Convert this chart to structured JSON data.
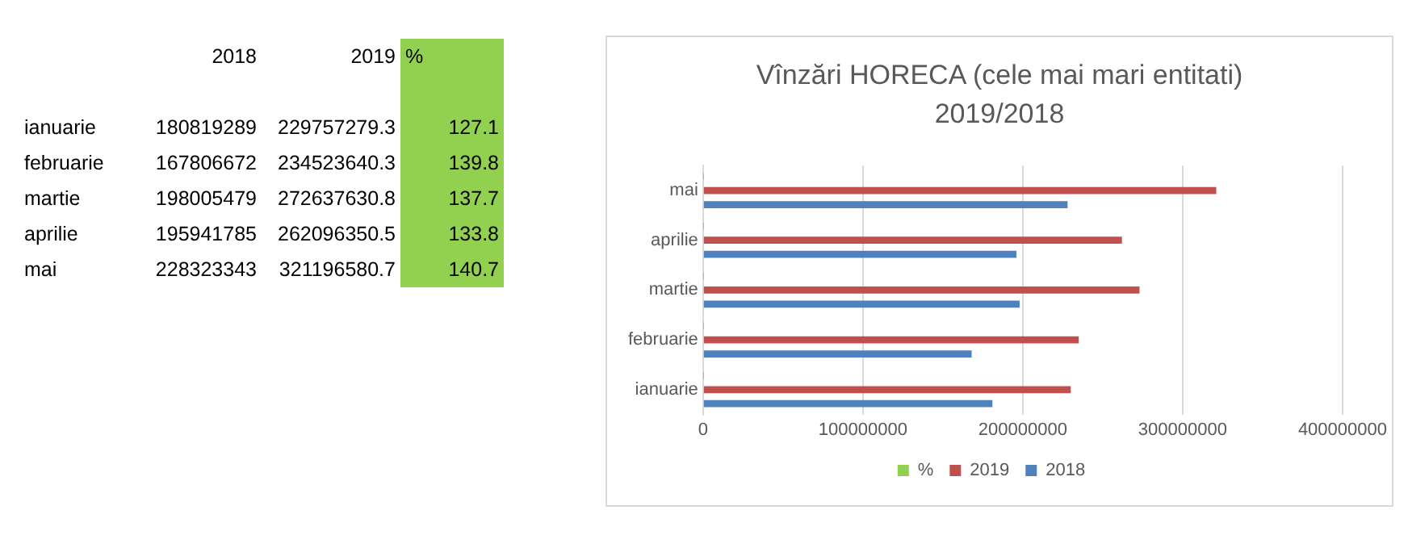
{
  "chart_data": [
    {
      "type": "other",
      "categories": [
        "ianuarie",
        "februarie",
        "martie",
        "aprilie",
        "mai"
      ],
      "series": [
        {
          "name": "2018",
          "values": [
            180819289,
            167806672,
            198005479,
            195941785,
            228323343
          ]
        },
        {
          "name": "2019",
          "values": [
            229757279.3,
            234523640.3,
            272637630.8,
            262096350.5,
            321196580.7
          ]
        },
        {
          "name": "%",
          "color": "#92d050",
          "values": [
            127.1,
            139.8,
            137.7,
            133.8,
            140.7
          ]
        }
      ],
      "data_labels": true
    },
    {
      "type": "bar",
      "orientation": "horizontal",
      "title": "Vînzări HORECA (cele mai mari entitati) 2019/2018",
      "categories": [
        "mai",
        "aprilie",
        "martie",
        "februarie",
        "ianuarie"
      ],
      "series": [
        {
          "name": "%",
          "color": "#92d050",
          "values": [
            141,
            134,
            138,
            140,
            127
          ]
        },
        {
          "name": "2019",
          "color": "#c0504d",
          "values": [
            321000000,
            262000000,
            273000000,
            235000000,
            230000000
          ]
        },
        {
          "name": "2018",
          "color": "#4f81bd",
          "values": [
            228000000,
            196000000,
            198000000,
            168000000,
            181000000
          ]
        }
      ],
      "xlim": [
        0,
        400000000
      ],
      "xticks": [
        0,
        100000000,
        200000000,
        300000000,
        400000000
      ],
      "grid": "x",
      "legend": "bottom"
    }
  ]
}
